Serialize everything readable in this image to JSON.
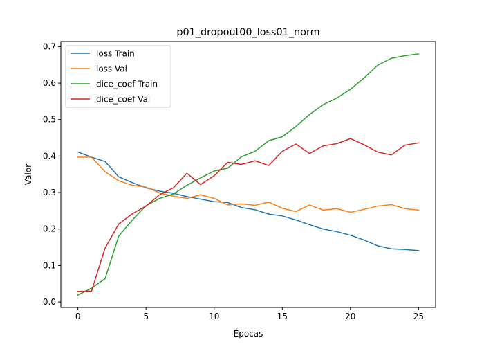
{
  "chart_data": {
    "type": "line",
    "title": "p01_dropout00_loss01_norm",
    "xlabel": "Épocas",
    "ylabel": "Valor",
    "xlim": [
      -1.25,
      26.25
    ],
    "ylim": [
      -0.015,
      0.714
    ],
    "x_ticks": [
      0,
      5,
      10,
      15,
      20,
      25
    ],
    "y_ticks": [
      0.0,
      0.1,
      0.2,
      0.3,
      0.4,
      0.5,
      0.6,
      0.7
    ],
    "grid": false,
    "legend_position": "upper left",
    "x": [
      0,
      1,
      2,
      3,
      4,
      5,
      6,
      7,
      8,
      9,
      10,
      11,
      12,
      13,
      14,
      15,
      16,
      17,
      18,
      19,
      20,
      21,
      22,
      23,
      24,
      25
    ],
    "series": [
      {
        "name": "loss Train",
        "color": "#1f77b4",
        "values": [
          0.411,
          0.397,
          0.385,
          0.343,
          0.327,
          0.313,
          0.304,
          0.298,
          0.289,
          0.282,
          0.275,
          0.273,
          0.259,
          0.253,
          0.241,
          0.236,
          0.225,
          0.212,
          0.2,
          0.193,
          0.183,
          0.17,
          0.154,
          0.146,
          0.144,
          0.141
        ]
      },
      {
        "name": "loss Val",
        "color": "#ff7f0e",
        "values": [
          0.397,
          0.397,
          0.357,
          0.332,
          0.32,
          0.315,
          0.299,
          0.29,
          0.284,
          0.294,
          0.284,
          0.266,
          0.269,
          0.265,
          0.274,
          0.257,
          0.248,
          0.266,
          0.252,
          0.256,
          0.246,
          0.254,
          0.263,
          0.267,
          0.256,
          0.252
        ]
      },
      {
        "name": "dice_coef Train",
        "color": "#2ca02c",
        "values": [
          0.019,
          0.038,
          0.064,
          0.181,
          0.225,
          0.264,
          0.284,
          0.296,
          0.32,
          0.34,
          0.359,
          0.367,
          0.398,
          0.413,
          0.442,
          0.453,
          0.481,
          0.514,
          0.541,
          0.559,
          0.583,
          0.614,
          0.649,
          0.668,
          0.675,
          0.68
        ]
      },
      {
        "name": "dice_coef Val",
        "color": "#d62728",
        "values": [
          0.029,
          0.03,
          0.148,
          0.214,
          0.242,
          0.263,
          0.294,
          0.313,
          0.353,
          0.322,
          0.346,
          0.383,
          0.377,
          0.387,
          0.374,
          0.413,
          0.433,
          0.407,
          0.428,
          0.434,
          0.448,
          0.431,
          0.411,
          0.403,
          0.43,
          0.436
        ]
      }
    ]
  }
}
